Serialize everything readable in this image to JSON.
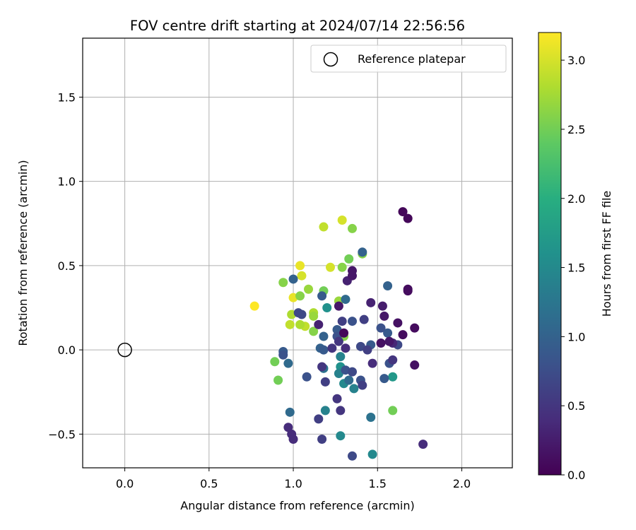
{
  "chart_data": {
    "type": "scatter",
    "title": "FOV centre drift starting at 2024/07/14 22:56:56",
    "xlabel": "Angular distance from reference (arcmin)",
    "ylabel": "Rotation from reference (arcmin)",
    "xlim": [
      -0.25,
      2.3
    ],
    "ylim": [
      -0.7,
      1.85
    ],
    "xticks": [
      0.0,
      0.5,
      1.0,
      1.5,
      2.0
    ],
    "xtick_labels": [
      "0.0",
      "0.5",
      "1.0",
      "1.5",
      "2.0"
    ],
    "yticks": [
      -0.5,
      0.0,
      0.5,
      1.0,
      1.5
    ],
    "ytick_labels": [
      "−0.5",
      "0.0",
      "0.5",
      "1.0",
      "1.5"
    ],
    "grid": true,
    "legend": {
      "placement": "top-right",
      "label": "Reference platepar"
    },
    "reference_point": {
      "x": 0.0,
      "y": 0.0
    },
    "colorbar": {
      "label": "Hours from first FF file",
      "colormap": "viridis",
      "range": [
        0.0,
        3.2
      ],
      "ticks": [
        0.0,
        0.5,
        1.0,
        1.5,
        2.0,
        2.5,
        3.0
      ],
      "tick_labels": [
        "0.0",
        "0.5",
        "1.0",
        "1.5",
        "2.0",
        "2.5",
        "3.0"
      ]
    },
    "points": [
      {
        "x": 1.65,
        "y": 0.82,
        "c": 0.05
      },
      {
        "x": 1.68,
        "y": 0.78,
        "c": 0.05
      },
      {
        "x": 1.68,
        "y": 0.36,
        "c": 0.1
      },
      {
        "x": 1.68,
        "y": 0.35,
        "c": 0.1
      },
      {
        "x": 1.72,
        "y": 0.13,
        "c": 0.1
      },
      {
        "x": 1.72,
        "y": -0.09,
        "c": 0.15
      },
      {
        "x": 1.77,
        "y": -0.56,
        "c": 0.4
      },
      {
        "x": 1.62,
        "y": 0.16,
        "c": 0.15
      },
      {
        "x": 1.65,
        "y": 0.09,
        "c": 0.1
      },
      {
        "x": 1.53,
        "y": 0.26,
        "c": 0.25
      },
      {
        "x": 1.54,
        "y": 0.2,
        "c": 0.2
      },
      {
        "x": 1.46,
        "y": 0.28,
        "c": 0.3
      },
      {
        "x": 1.57,
        "y": 0.05,
        "c": 0.2
      },
      {
        "x": 1.52,
        "y": 0.04,
        "c": 0.15
      },
      {
        "x": 1.59,
        "y": 0.04,
        "c": 0.35
      },
      {
        "x": 1.62,
        "y": 0.03,
        "c": 0.7
      },
      {
        "x": 1.52,
        "y": 0.13,
        "c": 0.8
      },
      {
        "x": 1.56,
        "y": 0.1,
        "c": 0.9
      },
      {
        "x": 1.56,
        "y": 0.38,
        "c": 1.0
      },
      {
        "x": 1.59,
        "y": -0.06,
        "c": 0.5
      },
      {
        "x": 1.57,
        "y": -0.08,
        "c": 0.8
      },
      {
        "x": 1.59,
        "y": -0.16,
        "c": 1.7
      },
      {
        "x": 1.54,
        "y": -0.17,
        "c": 0.9
      },
      {
        "x": 1.59,
        "y": -0.36,
        "c": 2.5
      },
      {
        "x": 1.47,
        "y": -0.62,
        "c": 1.5
      },
      {
        "x": 1.46,
        "y": -0.4,
        "c": 1.2
      },
      {
        "x": 1.47,
        "y": -0.08,
        "c": 0.4
      },
      {
        "x": 1.46,
        "y": 0.03,
        "c": 0.9
      },
      {
        "x": 1.44,
        "y": 0.0,
        "c": 0.6
      },
      {
        "x": 1.4,
        "y": 0.02,
        "c": 0.7
      },
      {
        "x": 1.42,
        "y": 0.18,
        "c": 0.6
      },
      {
        "x": 1.41,
        "y": 0.58,
        "c": 1.0
      },
      {
        "x": 1.41,
        "y": 0.57,
        "c": 2.6
      },
      {
        "x": 1.35,
        "y": 0.72,
        "c": 2.6
      },
      {
        "x": 1.29,
        "y": 0.77,
        "c": 3.0
      },
      {
        "x": 1.18,
        "y": 0.73,
        "c": 2.9
      },
      {
        "x": 1.33,
        "y": 0.54,
        "c": 2.5
      },
      {
        "x": 1.35,
        "y": 0.47,
        "c": 0.2
      },
      {
        "x": 1.35,
        "y": 0.44,
        "c": 0.2
      },
      {
        "x": 1.32,
        "y": 0.41,
        "c": 0.3
      },
      {
        "x": 1.29,
        "y": 0.49,
        "c": 2.6
      },
      {
        "x": 1.22,
        "y": 0.49,
        "c": 3.0
      },
      {
        "x": 1.31,
        "y": 0.3,
        "c": 1.1
      },
      {
        "x": 1.27,
        "y": 0.29,
        "c": 2.7
      },
      {
        "x": 1.27,
        "y": 0.26,
        "c": 0.2
      },
      {
        "x": 1.35,
        "y": 0.17,
        "c": 0.8
      },
      {
        "x": 1.29,
        "y": 0.17,
        "c": 0.6
      },
      {
        "x": 1.3,
        "y": 0.1,
        "c": 0.05
      },
      {
        "x": 1.3,
        "y": 0.08,
        "c": 2.6
      },
      {
        "x": 1.31,
        "y": 0.01,
        "c": 0.4
      },
      {
        "x": 1.27,
        "y": 0.05,
        "c": 0.5
      },
      {
        "x": 1.26,
        "y": 0.12,
        "c": 0.9
      },
      {
        "x": 1.26,
        "y": 0.08,
        "c": 0.8
      },
      {
        "x": 1.23,
        "y": 0.01,
        "c": 0.5
      },
      {
        "x": 1.2,
        "y": 0.25,
        "c": 1.6
      },
      {
        "x": 1.18,
        "y": 0.35,
        "c": 2.5
      },
      {
        "x": 1.17,
        "y": 0.32,
        "c": 0.9
      },
      {
        "x": 1.15,
        "y": 0.15,
        "c": 0.3
      },
      {
        "x": 1.18,
        "y": 0.08,
        "c": 1.0
      },
      {
        "x": 1.16,
        "y": 0.01,
        "c": 1.0
      },
      {
        "x": 1.18,
        "y": 0.0,
        "c": 0.9
      },
      {
        "x": 1.17,
        "y": -0.1,
        "c": 0.5
      },
      {
        "x": 1.18,
        "y": -0.11,
        "c": 1.2
      },
      {
        "x": 1.19,
        "y": -0.19,
        "c": 0.6
      },
      {
        "x": 1.28,
        "y": -0.04,
        "c": 1.4
      },
      {
        "x": 1.28,
        "y": -0.1,
        "c": 1.6
      },
      {
        "x": 1.27,
        "y": -0.14,
        "c": 1.4
      },
      {
        "x": 1.31,
        "y": -0.12,
        "c": 0.8
      },
      {
        "x": 1.33,
        "y": -0.18,
        "c": 1.1
      },
      {
        "x": 1.3,
        "y": -0.2,
        "c": 1.5
      },
      {
        "x": 1.36,
        "y": -0.23,
        "c": 1.4
      },
      {
        "x": 1.35,
        "y": -0.13,
        "c": 0.7
      },
      {
        "x": 1.4,
        "y": -0.18,
        "c": 0.8
      },
      {
        "x": 1.41,
        "y": -0.21,
        "c": 0.6
      },
      {
        "x": 1.26,
        "y": -0.29,
        "c": 0.5
      },
      {
        "x": 1.28,
        "y": -0.36,
        "c": 0.5
      },
      {
        "x": 1.19,
        "y": -0.36,
        "c": 1.4
      },
      {
        "x": 1.15,
        "y": -0.41,
        "c": 0.6
      },
      {
        "x": 1.28,
        "y": -0.51,
        "c": 1.5
      },
      {
        "x": 1.17,
        "y": -0.53,
        "c": 0.6
      },
      {
        "x": 1.35,
        "y": -0.63,
        "c": 0.7
      },
      {
        "x": 1.08,
        "y": -0.16,
        "c": 0.8
      },
      {
        "x": 1.05,
        "y": 0.21,
        "c": 0.7
      },
      {
        "x": 1.03,
        "y": 0.22,
        "c": 0.7
      },
      {
        "x": 1.0,
        "y": 0.42,
        "c": 1.0
      },
      {
        "x": 1.04,
        "y": 0.5,
        "c": 3.1
      },
      {
        "x": 1.05,
        "y": 0.44,
        "c": 3.0
      },
      {
        "x": 0.94,
        "y": 0.4,
        "c": 2.6
      },
      {
        "x": 1.09,
        "y": 0.36,
        "c": 2.7
      },
      {
        "x": 1.04,
        "y": 0.32,
        "c": 2.6
      },
      {
        "x": 1.0,
        "y": 0.31,
        "c": 3.1
      },
      {
        "x": 0.77,
        "y": 0.26,
        "c": 3.2
      },
      {
        "x": 0.99,
        "y": 0.21,
        "c": 2.8
      },
      {
        "x": 0.98,
        "y": 0.15,
        "c": 2.9
      },
      {
        "x": 1.04,
        "y": 0.15,
        "c": 2.8
      },
      {
        "x": 1.07,
        "y": 0.14,
        "c": 2.9
      },
      {
        "x": 1.12,
        "y": 0.22,
        "c": 2.8
      },
      {
        "x": 1.12,
        "y": 0.2,
        "c": 2.7
      },
      {
        "x": 1.12,
        "y": 0.11,
        "c": 2.6
      },
      {
        "x": 0.94,
        "y": -0.01,
        "c": 0.9
      },
      {
        "x": 0.94,
        "y": -0.03,
        "c": 0.8
      },
      {
        "x": 0.97,
        "y": -0.08,
        "c": 1.1
      },
      {
        "x": 0.89,
        "y": -0.07,
        "c": 2.5
      },
      {
        "x": 0.91,
        "y": -0.18,
        "c": 2.5
      },
      {
        "x": 0.98,
        "y": -0.37,
        "c": 1.1
      },
      {
        "x": 0.97,
        "y": -0.46,
        "c": 0.4
      },
      {
        "x": 0.99,
        "y": -0.5,
        "c": 0.4
      },
      {
        "x": 1.0,
        "y": -0.53,
        "c": 0.4
      }
    ]
  }
}
